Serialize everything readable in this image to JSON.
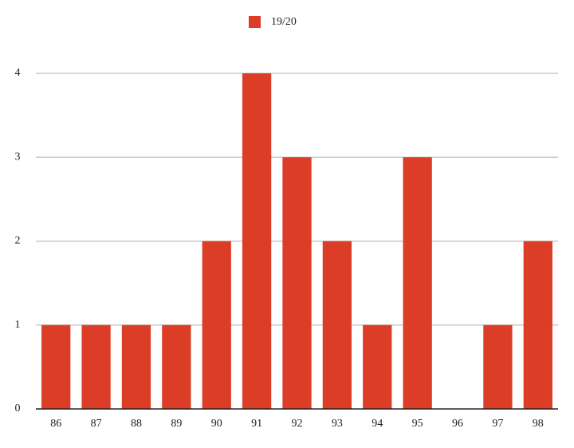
{
  "chart_data": {
    "type": "bar",
    "legend": "19/20",
    "categories": [
      "86",
      "87",
      "88",
      "89",
      "90",
      "91",
      "92",
      "93",
      "94",
      "95",
      "96",
      "97",
      "98"
    ],
    "values": [
      1,
      1,
      1,
      1,
      2,
      4,
      3,
      2,
      1,
      3,
      0,
      1,
      2
    ],
    "color": "#dc3d26",
    "ylim": [
      0,
      4
    ],
    "yticks": [
      0,
      1,
      2,
      3,
      4
    ],
    "grid": true
  }
}
